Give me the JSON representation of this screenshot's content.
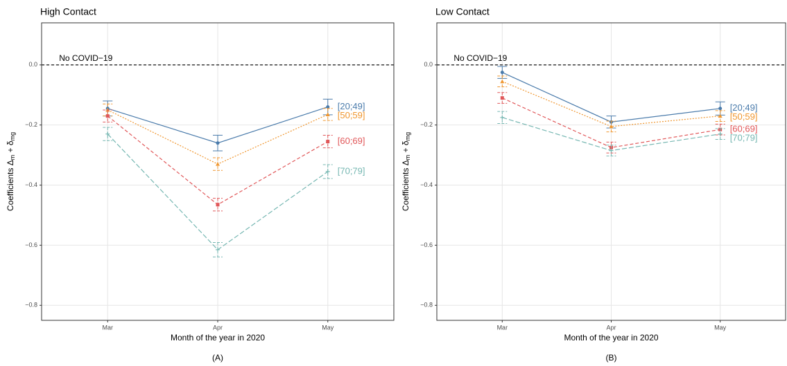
{
  "chart_data": [
    {
      "type": "line",
      "title": "High Contact",
      "caption": "(A)",
      "xlabel": "Month of the year in 2020",
      "ylabel": [
        {
          "text": "Coefficients Δ"
        },
        {
          "text": "m",
          "sub": true
        },
        {
          "text": " + δ"
        },
        {
          "text": "mg",
          "sub": true
        }
      ],
      "categories": [
        "Mar",
        "Apr",
        "May"
      ],
      "ylim": [
        -0.85,
        0.14
      ],
      "yticks": [
        {
          "value": -0.8,
          "label": "−0.8"
        },
        {
          "value": -0.6,
          "label": "−0.6"
        },
        {
          "value": -0.4,
          "label": "−0.4"
        },
        {
          "value": -0.2,
          "label": "−0.2"
        },
        {
          "value": 0,
          "label": "0.0"
        }
      ],
      "grid": true,
      "hline": {
        "value": 0,
        "label": "No COVID−19"
      },
      "series": [
        {
          "name": "[20;49]",
          "color": "#4a7bab",
          "line_style": "solid",
          "marker": "circle",
          "values": [
            -0.145,
            -0.26,
            -0.14
          ],
          "errors": [
            0.025,
            0.026,
            0.026
          ]
        },
        {
          "name": "[50;59]",
          "color": "#f0962e",
          "line_style": "dotted",
          "marker": "triangle",
          "values": [
            -0.15,
            -0.33,
            -0.165
          ],
          "errors": [
            0.02,
            0.021,
            0.02
          ]
        },
        {
          "name": "[60;69]",
          "color": "#e15759",
          "line_style": "dashed",
          "marker": "square",
          "values": [
            -0.17,
            -0.465,
            -0.255
          ],
          "errors": [
            0.02,
            0.021,
            0.021
          ]
        },
        {
          "name": "[70;79]",
          "color": "#76b7b2",
          "line_style": "longdash",
          "marker": "plus",
          "values": [
            -0.23,
            -0.615,
            -0.355
          ],
          "errors": [
            0.022,
            0.024,
            0.023
          ]
        }
      ]
    },
    {
      "type": "line",
      "title": "Low Contact",
      "caption": "(B)",
      "xlabel": "Month of the year in 2020",
      "ylabel": [
        {
          "text": "Coefficients Δ"
        },
        {
          "text": "m",
          "sub": true
        },
        {
          "text": " + δ"
        },
        {
          "text": "mg",
          "sub": true
        }
      ],
      "categories": [
        "Mar",
        "Apr",
        "May"
      ],
      "ylim": [
        -0.85,
        0.14
      ],
      "yticks": [
        {
          "value": -0.8,
          "label": "−0.8"
        },
        {
          "value": -0.6,
          "label": "−0.6"
        },
        {
          "value": -0.4,
          "label": "−0.4"
        },
        {
          "value": -0.2,
          "label": "−0.2"
        },
        {
          "value": 0,
          "label": "0.0"
        }
      ],
      "grid": true,
      "hline": {
        "value": 0,
        "label": "No COVID−19"
      },
      "series": [
        {
          "name": "[20;49]",
          "color": "#4a7bab",
          "line_style": "solid",
          "marker": "circle",
          "values": [
            -0.025,
            -0.19,
            -0.145
          ],
          "errors": [
            0.02,
            0.02,
            0.022
          ]
        },
        {
          "name": "[50;59]",
          "color": "#f0962e",
          "line_style": "dotted",
          "marker": "triangle",
          "values": [
            -0.055,
            -0.205,
            -0.17
          ],
          "errors": [
            0.018,
            0.018,
            0.018
          ]
        },
        {
          "name": "[60;69]",
          "color": "#e15759",
          "line_style": "dashed",
          "marker": "square",
          "values": [
            -0.11,
            -0.275,
            -0.215
          ],
          "errors": [
            0.018,
            0.018,
            0.018
          ]
        },
        {
          "name": "[70;79]",
          "color": "#76b7b2",
          "line_style": "longdash",
          "marker": "plus",
          "values": [
            -0.175,
            -0.285,
            -0.23
          ],
          "errors": [
            0.02,
            0.018,
            0.018
          ]
        }
      ]
    }
  ]
}
